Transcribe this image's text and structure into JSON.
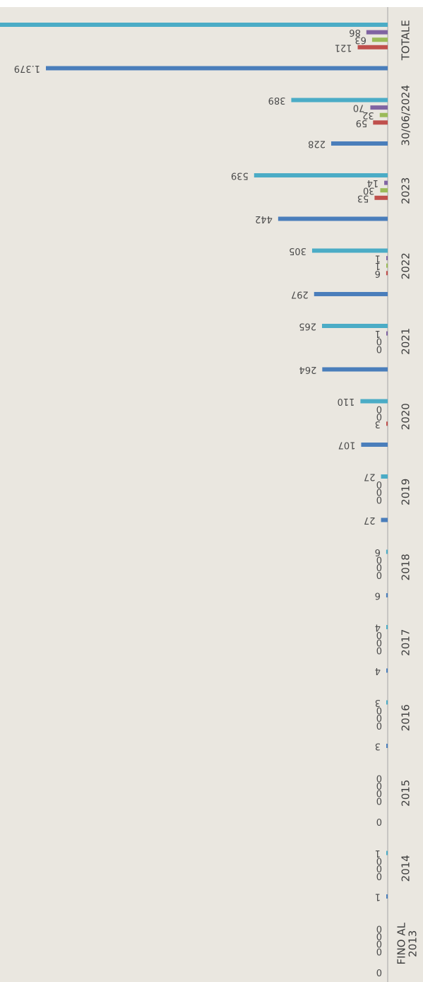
{
  "chart_data": {
    "type": "bar",
    "orientation": "horizontal",
    "rotated": "chart rotated 90 degrees clockwise; category axis on right, bars extend leftward",
    "title": "",
    "xlabel": "",
    "ylabel": "",
    "grid": false,
    "legend": "none",
    "categories": [
      "FINO AL 2013",
      "2014",
      "2015",
      "2016",
      "2017",
      "2018",
      "2019",
      "2020",
      "2021",
      "2022",
      "2023",
      "30/06/2024",
      "TOTALE"
    ],
    "series": [
      {
        "color": "#4a7ebb",
        "values": [
          0,
          1,
          0,
          3,
          4,
          6,
          27,
          107,
          264,
          297,
          442,
          228,
          1379
        ],
        "labels": [
          "0",
          "1",
          "0",
          "3",
          "4",
          "6",
          "27",
          "107",
          "264",
          "297",
          "442",
          "228",
          "1.379"
        ]
      },
      {
        "color": "#c0504d",
        "values": [
          0,
          0,
          0,
          0,
          0,
          0,
          0,
          3,
          0,
          6,
          53,
          59,
          121
        ],
        "labels": [
          "0",
          "0",
          "0",
          "0",
          "0",
          "0",
          "0",
          "3",
          "0",
          "6",
          "53",
          "59",
          "121"
        ]
      },
      {
        "color": "#9bbb59",
        "values": [
          0,
          0,
          0,
          0,
          0,
          0,
          0,
          0,
          0,
          1,
          30,
          32,
          63
        ],
        "labels": [
          "0",
          "0",
          "0",
          "0",
          "0",
          "0",
          "0",
          "0",
          "0",
          "1",
          "30",
          "32",
          "63"
        ]
      },
      {
        "color": "#8064a2",
        "values": [
          0,
          0,
          0,
          0,
          0,
          0,
          0,
          0,
          1,
          1,
          14,
          70,
          86
        ],
        "labels": [
          "0",
          "0",
          "0",
          "0",
          "0",
          "0",
          "0",
          "0",
          "1",
          "1",
          "14",
          "70",
          "86"
        ]
      },
      {
        "color": "#4bacc6",
        "values": [
          0,
          1,
          0,
          3,
          4,
          6,
          27,
          110,
          265,
          305,
          539,
          389,
          1649
        ],
        "labels": [
          "0",
          "1",
          "0",
          "3",
          "4",
          "6",
          "27",
          "110",
          "265",
          "305",
          "539",
          "389",
          ""
        ]
      }
    ],
    "colors": {
      "background": "#eae7e0",
      "page": "#ffffff",
      "axis": "#a6a6a6",
      "category_text": "#3f3f3f",
      "value_text": "#4a4a4a"
    }
  }
}
